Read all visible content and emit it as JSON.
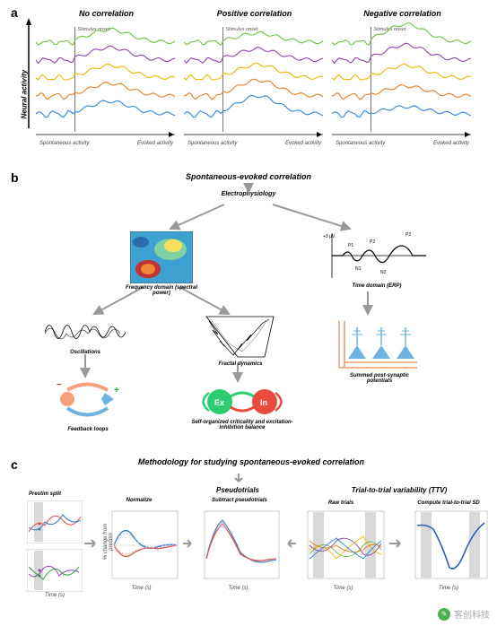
{
  "panelA": {
    "label": "a",
    "ylabel": "Neural activity",
    "cols": [
      {
        "title": "No correlation",
        "onset": "Stimulus onset",
        "left": "Spontaneous activity",
        "right": "Evoked activity"
      },
      {
        "title": "Positive correlation",
        "onset": "Stimulus onset",
        "left": "Spontaneous activity",
        "right": "Evoked activity"
      },
      {
        "title": "Negative correlation",
        "onset": "Stimulus onset",
        "left": "Spontaneous activity",
        "right": "Evoked activity"
      }
    ],
    "trace_colors": [
      "#6fbf44",
      "#8e44ad",
      "#e6b800",
      "#e67e22",
      "#2e86de"
    ],
    "stimulus_line_color": "#555555",
    "axis_color": "#000000"
  },
  "panelB": {
    "label": "b",
    "title": "Spontaneous-evoked correlation",
    "root": "Electrophysiology",
    "nodes": {
      "freq": "Frequency domain (spectral power)",
      "osc": "Oscillations",
      "feedback": "Feedback loops",
      "fractal": "Fractal dynamics",
      "soc": "Self-organized criticality and excitation-inhibition balance",
      "time": "Time domain (ERP)",
      "psp": "Summed post-synaptic potentials"
    },
    "erp_labels": {
      "p1": "P1",
      "n1": "N1",
      "p2": "P2",
      "n2": "N2",
      "p3": "P3",
      "unit": "+3 μV"
    },
    "ei": {
      "ex": "Ex",
      "in": "In",
      "ex_color": "#2ecc71",
      "in_color": "#e74c3c"
    },
    "feedback_colors": {
      "neg": "#f5a07a",
      "pos": "#6fb3e0",
      "minus": "#b23a3a",
      "plus": "#2d9d3a"
    },
    "spectro_colors": [
      "#2b6cb0",
      "#3da0d1",
      "#7fd1a1",
      "#f6e05e",
      "#ed8936",
      "#c53030"
    ]
  },
  "panelC": {
    "label": "c",
    "title": "Methodology for studying spontaneous-evoked correlation",
    "steps": {
      "prestim": "Prestim split",
      "normalize": "Normalize",
      "pseudo": "Pseudotrials",
      "subtract": "Subtract pseudotrials",
      "raw": "Raw trials",
      "ttv": "Trial-to-trial variability (TTV)",
      "sd": "Compute trial-to-trial SD"
    },
    "axis_label_x": "Time (s)",
    "axis_label_y": "% change from prestim",
    "legend_colors": {
      "low": "#d9534f",
      "high": "#337ab7",
      "pseudo_low": "#e9a0a0",
      "pseudo_high": "#a0b9e9"
    },
    "shade_color": "#d9d9d9"
  },
  "watermark": "客创科技"
}
